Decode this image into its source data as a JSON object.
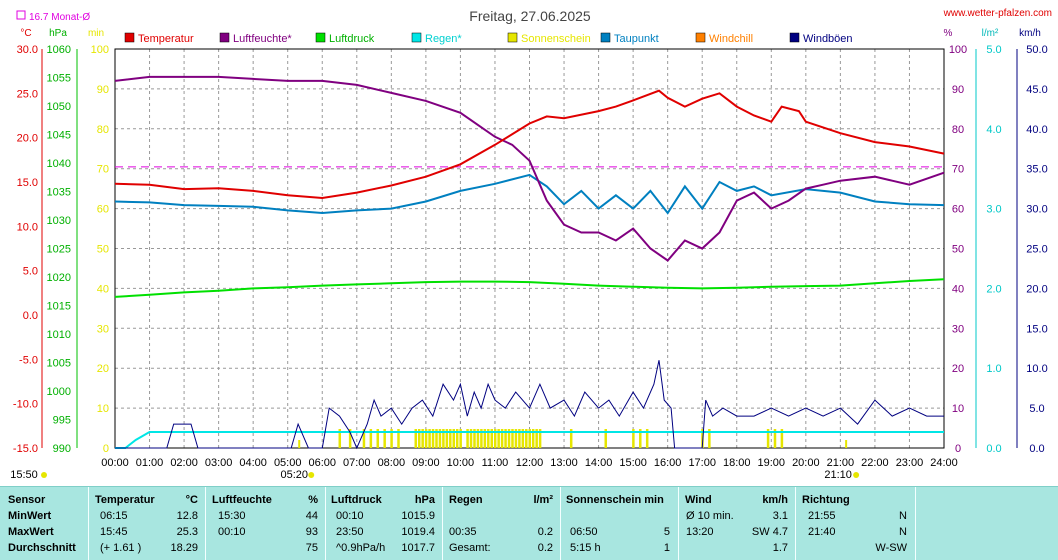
{
  "title": "Freitag, 27.06.2025",
  "site": "www.wetter-pfalzen.com",
  "legend": [
    {
      "name": "Temperatur",
      "color": "#e00000"
    },
    {
      "name": "Luftfeuchte*",
      "color": "#800080"
    },
    {
      "name": "Luftdruck",
      "color": "#00e000"
    },
    {
      "name": "Regen*",
      "color": "#00e6e6"
    },
    {
      "name": "Sonnenschein",
      "color": "#e6e600"
    },
    {
      "name": "Taupunkt",
      "color": "#0080c0"
    },
    {
      "name": "Windchill",
      "color": "#ff8000"
    },
    {
      "name": "Windböen",
      "color": "#000080"
    }
  ],
  "month_avg_label": "16.7 Monat-Ø",
  "units": {
    "temp": "°C",
    "pressure": "hPa",
    "sun": "min",
    "humidity": "%",
    "rain": "l/m²",
    "wind": "km/h"
  },
  "axes": {
    "temp_ticks": [
      "30.0",
      "25.0",
      "20.0",
      "15.0",
      "10.0",
      "5.0",
      "0.0",
      "-5.0",
      "-10.0",
      "-15.0"
    ],
    "pressure_ticks": [
      "1060",
      "1055",
      "1050",
      "1045",
      "1040",
      "1035",
      "1030",
      "1025",
      "1020",
      "1015",
      "1010",
      "1005",
      "1000",
      "995",
      "990"
    ],
    "sun_ticks": [
      "100",
      "90",
      "80",
      "70",
      "60",
      "50",
      "40",
      "30",
      "20",
      "10",
      "0"
    ],
    "humidity_ticks": [
      "100",
      "90",
      "80",
      "70",
      "60",
      "50",
      "40",
      "30",
      "20",
      "10",
      "0"
    ],
    "rain_ticks": [
      "5.0",
      "4.0",
      "3.0",
      "2.0",
      "1.0",
      "0.0"
    ],
    "wind_ticks": [
      "50.0",
      "45.0",
      "40.0",
      "35.0",
      "30.0",
      "25.0",
      "20.0",
      "15.0",
      "10.0",
      "5.0",
      "0.0"
    ],
    "time_ticks": [
      "00:00",
      "01:00",
      "02:00",
      "03:00",
      "04:00",
      "05:00",
      "06:00",
      "07:00",
      "08:00",
      "09:00",
      "10:00",
      "11:00",
      "12:00",
      "13:00",
      "14:00",
      "15:00",
      "16:00",
      "17:00",
      "18:00",
      "19:00",
      "20:00",
      "21:00",
      "22:00",
      "23:00",
      "24:00"
    ]
  },
  "sun_markers": {
    "sunrise": "05:20",
    "sunset": "21:10",
    "now": "15:50"
  },
  "chart_data": {
    "type": "line",
    "x_unit": "hour",
    "series": [
      {
        "name": "Temperatur",
        "unit": "°C",
        "points": [
          [
            0,
            14.8
          ],
          [
            1,
            14.7
          ],
          [
            2,
            14.2
          ],
          [
            3,
            14.3
          ],
          [
            4,
            14.0
          ],
          [
            5,
            13.5
          ],
          [
            6,
            13.2
          ],
          [
            7,
            13.8
          ],
          [
            8,
            14.6
          ],
          [
            9,
            15.6
          ],
          [
            10,
            17.0
          ],
          [
            11,
            19.2
          ],
          [
            12,
            21.6
          ],
          [
            12.5,
            22.4
          ],
          [
            13,
            22.2
          ],
          [
            14,
            23.0
          ],
          [
            14.5,
            23.5
          ],
          [
            15,
            24.2
          ],
          [
            15.75,
            25.3
          ],
          [
            16,
            24.5
          ],
          [
            16.5,
            23.5
          ],
          [
            17,
            24.4
          ],
          [
            17.5,
            25.0
          ],
          [
            18,
            23.5
          ],
          [
            18.5,
            22.5
          ],
          [
            19,
            21.8
          ],
          [
            19.3,
            23.5
          ],
          [
            19.8,
            23.0
          ],
          [
            20,
            21.8
          ],
          [
            21,
            20.5
          ],
          [
            22,
            19.5
          ],
          [
            23,
            19.0
          ],
          [
            24,
            18.2
          ]
        ]
      },
      {
        "name": "Luftfeuchte*",
        "unit": "%",
        "points": [
          [
            0,
            92
          ],
          [
            1,
            93
          ],
          [
            2,
            93
          ],
          [
            3,
            93
          ],
          [
            4,
            92.5
          ],
          [
            5,
            92
          ],
          [
            6,
            92
          ],
          [
            7,
            91
          ],
          [
            8,
            89
          ],
          [
            9,
            87
          ],
          [
            10,
            84
          ],
          [
            11,
            78
          ],
          [
            11.5,
            76
          ],
          [
            12,
            72
          ],
          [
            12.5,
            62
          ],
          [
            13,
            56
          ],
          [
            13.5,
            54
          ],
          [
            14,
            54
          ],
          [
            14.5,
            52
          ],
          [
            15,
            55
          ],
          [
            15.5,
            50
          ],
          [
            16,
            47
          ],
          [
            16.5,
            52
          ],
          [
            17,
            50
          ],
          [
            17.5,
            54
          ],
          [
            18,
            62
          ],
          [
            18.5,
            64
          ],
          [
            19,
            60
          ],
          [
            19.5,
            62
          ],
          [
            20,
            65
          ],
          [
            20.5,
            66
          ],
          [
            21,
            67
          ],
          [
            22,
            68
          ],
          [
            22.5,
            67
          ],
          [
            23,
            66
          ],
          [
            24,
            69
          ]
        ]
      },
      {
        "name": "Luftdruck",
        "unit": "hPa",
        "points": [
          [
            0,
            1016.5
          ],
          [
            1,
            1016.9
          ],
          [
            2,
            1017.3
          ],
          [
            3,
            1017.6
          ],
          [
            4,
            1018.0
          ],
          [
            5,
            1018.2
          ],
          [
            6,
            1018.5
          ],
          [
            7,
            1018.7
          ],
          [
            8,
            1018.9
          ],
          [
            9,
            1019.1
          ],
          [
            10,
            1019.2
          ],
          [
            11,
            1019.2
          ],
          [
            12,
            1019.1
          ],
          [
            13,
            1018.8
          ],
          [
            14,
            1018.5
          ],
          [
            15,
            1018.3
          ],
          [
            16,
            1018.1
          ],
          [
            17,
            1018.0
          ],
          [
            18,
            1018.1
          ],
          [
            19,
            1018.3
          ],
          [
            20,
            1018.4
          ],
          [
            21,
            1018.5
          ],
          [
            22,
            1018.9
          ],
          [
            23,
            1019.3
          ],
          [
            24,
            1019.6
          ]
        ]
      },
      {
        "name": "Taupunkt",
        "unit": "°C",
        "points": [
          [
            0,
            12.8
          ],
          [
            1,
            12.7
          ],
          [
            2,
            12.4
          ],
          [
            3,
            12.3
          ],
          [
            4,
            12.2
          ],
          [
            5,
            11.8
          ],
          [
            6,
            11.5
          ],
          [
            7,
            11.8
          ],
          [
            8,
            12.0
          ],
          [
            9,
            12.8
          ],
          [
            10,
            14.0
          ],
          [
            11,
            14.8
          ],
          [
            12,
            15.8
          ],
          [
            12.5,
            14.5
          ],
          [
            13,
            12.5
          ],
          [
            13.5,
            14.0
          ],
          [
            14,
            12.0
          ],
          [
            14.5,
            13.5
          ],
          [
            15,
            12.0
          ],
          [
            15.5,
            14.0
          ],
          [
            16,
            11.5
          ],
          [
            16.5,
            14.5
          ],
          [
            17,
            12.0
          ],
          [
            17.5,
            15.0
          ],
          [
            18,
            14.0
          ],
          [
            18.5,
            14.5
          ],
          [
            19,
            13.5
          ],
          [
            20,
            14.2
          ],
          [
            21,
            13.8
          ],
          [
            22,
            12.8
          ],
          [
            23,
            12.5
          ],
          [
            24,
            12.4
          ]
        ]
      },
      {
        "name": "Windböen",
        "unit": "km/h",
        "points": [
          [
            0,
            0
          ],
          [
            1.5,
            0
          ],
          [
            1.7,
            3
          ],
          [
            2.2,
            3
          ],
          [
            2.4,
            0
          ],
          [
            5.1,
            0
          ],
          [
            5.3,
            3
          ],
          [
            5.6,
            0
          ],
          [
            6,
            0
          ],
          [
            6.2,
            5
          ],
          [
            6.5,
            4
          ],
          [
            6.8,
            2
          ],
          [
            7,
            0
          ],
          [
            7.3,
            3
          ],
          [
            7.5,
            6
          ],
          [
            7.7,
            4
          ],
          [
            8,
            5
          ],
          [
            8.3,
            3
          ],
          [
            8.6,
            5
          ],
          [
            8.9,
            6
          ],
          [
            9.2,
            4
          ],
          [
            9.5,
            8
          ],
          [
            9.8,
            6
          ],
          [
            10,
            8
          ],
          [
            10.2,
            4
          ],
          [
            10.4,
            7
          ],
          [
            10.6,
            5
          ],
          [
            10.8,
            8
          ],
          [
            11,
            6
          ],
          [
            11.3,
            5
          ],
          [
            11.6,
            7
          ],
          [
            12,
            5
          ],
          [
            12.3,
            8
          ],
          [
            12.6,
            5
          ],
          [
            13,
            6
          ],
          [
            13.3,
            4
          ],
          [
            13.6,
            7
          ],
          [
            14,
            5
          ],
          [
            14.3,
            6
          ],
          [
            14.6,
            4
          ],
          [
            15,
            7
          ],
          [
            15.3,
            5
          ],
          [
            15.6,
            8
          ],
          [
            15.75,
            11
          ],
          [
            15.9,
            6
          ],
          [
            16.1,
            5
          ],
          [
            16.2,
            0
          ],
          [
            17,
            0
          ],
          [
            17.1,
            6
          ],
          [
            17.3,
            4
          ],
          [
            17.6,
            5
          ],
          [
            18,
            4
          ],
          [
            18.5,
            4
          ],
          [
            19,
            5
          ],
          [
            19.5,
            4
          ],
          [
            20,
            5
          ],
          [
            20.5,
            4
          ],
          [
            21,
            5
          ],
          [
            21.5,
            3
          ],
          [
            22,
            6
          ],
          [
            22.5,
            4
          ],
          [
            23,
            5
          ],
          [
            23.5,
            4
          ],
          [
            24,
            4
          ]
        ]
      },
      {
        "name": "Regen*",
        "unit": "l/m²",
        "points": [
          [
            0,
            0
          ],
          [
            0.3,
            0
          ],
          [
            0.6,
            0.1
          ],
          [
            1,
            0.2
          ],
          [
            24,
            0.2
          ]
        ]
      },
      {
        "name": "Sonnenschein",
        "unit": "min",
        "points": []
      }
    ],
    "month_avg_temp": 16.7,
    "sunshine_bars_hours": [
      6.5,
      6.8,
      7.2,
      7.4,
      7.6,
      7.8,
      8.0,
      8.2,
      8.7,
      8.8,
      8.9,
      9.0,
      9.1,
      9.2,
      9.3,
      9.4,
      9.5,
      9.6,
      9.7,
      9.8,
      9.9,
      10.0,
      10.2,
      10.3,
      10.4,
      10.5,
      10.6,
      10.7,
      10.8,
      10.9,
      11.0,
      11.1,
      11.2,
      11.3,
      11.4,
      11.5,
      11.6,
      11.7,
      11.8,
      11.9,
      12.0,
      12.1,
      12.2,
      12.3,
      13.2,
      14.2,
      15.0,
      15.2,
      15.4,
      17.0,
      17.2,
      18.9,
      19.1,
      19.3
    ],
    "ylim": {
      "temp": [
        -15,
        30
      ],
      "pressure": [
        990,
        1060
      ],
      "humidity": [
        0,
        100
      ],
      "rain": [
        0,
        5
      ],
      "wind": [
        0,
        50
      ]
    },
    "grid": true,
    "legend_position": "top"
  },
  "stats": {
    "headers": {
      "sensor": "Sensor",
      "temp": "Temperatur",
      "temp_u": "°C",
      "hum": "Luftfeuchte",
      "hum_u": "%",
      "press": "Luftdruck",
      "press_u": "hPa",
      "rain": "Regen",
      "rain_u": "l/m²",
      "sun": "Sonnenschein min",
      "wind": "Wind",
      "wind_u": "km/h",
      "dir": "Richtung"
    },
    "rows": [
      {
        "label": "MinWert",
        "t_time": "06:15",
        "t_val": "12.8",
        "h_time": "15:30",
        "h_val": "44",
        "p_time": "00:10",
        "p_val": "1015.9",
        "r_time": "",
        "r_val": "",
        "s_time": "",
        "s_val": "",
        "w_time": "Ø 10 min.",
        "w_val": "3.1",
        "d_time": "21:55",
        "d_val": "N"
      },
      {
        "label": "MaxWert",
        "t_time": "15:45",
        "t_val": "25.3",
        "h_time": "00:10",
        "h_val": "93",
        "p_time": "23:50",
        "p_val": "1019.4",
        "r_time": "00:35",
        "r_val": "0.2",
        "s_time": "06:50",
        "s_val": "5",
        "w_time": "13:20",
        "w_val": "SW 4.7",
        "d_time": "21:40",
        "d_val": "N"
      },
      {
        "label": "Durchschnitt",
        "t_time": "(+ 1.61 )",
        "t_val": "18.29",
        "h_time": "",
        "h_val": "75",
        "p_time": "^0.9hPa/h",
        "p_val": "1017.7",
        "r_time": "Gesamt:",
        "r_val": "0.2",
        "s_time": "5:15 h",
        "s_val": "1",
        "w_time": "",
        "w_val": "1.7",
        "d_time": "",
        "d_val": "W-SW"
      }
    ]
  }
}
